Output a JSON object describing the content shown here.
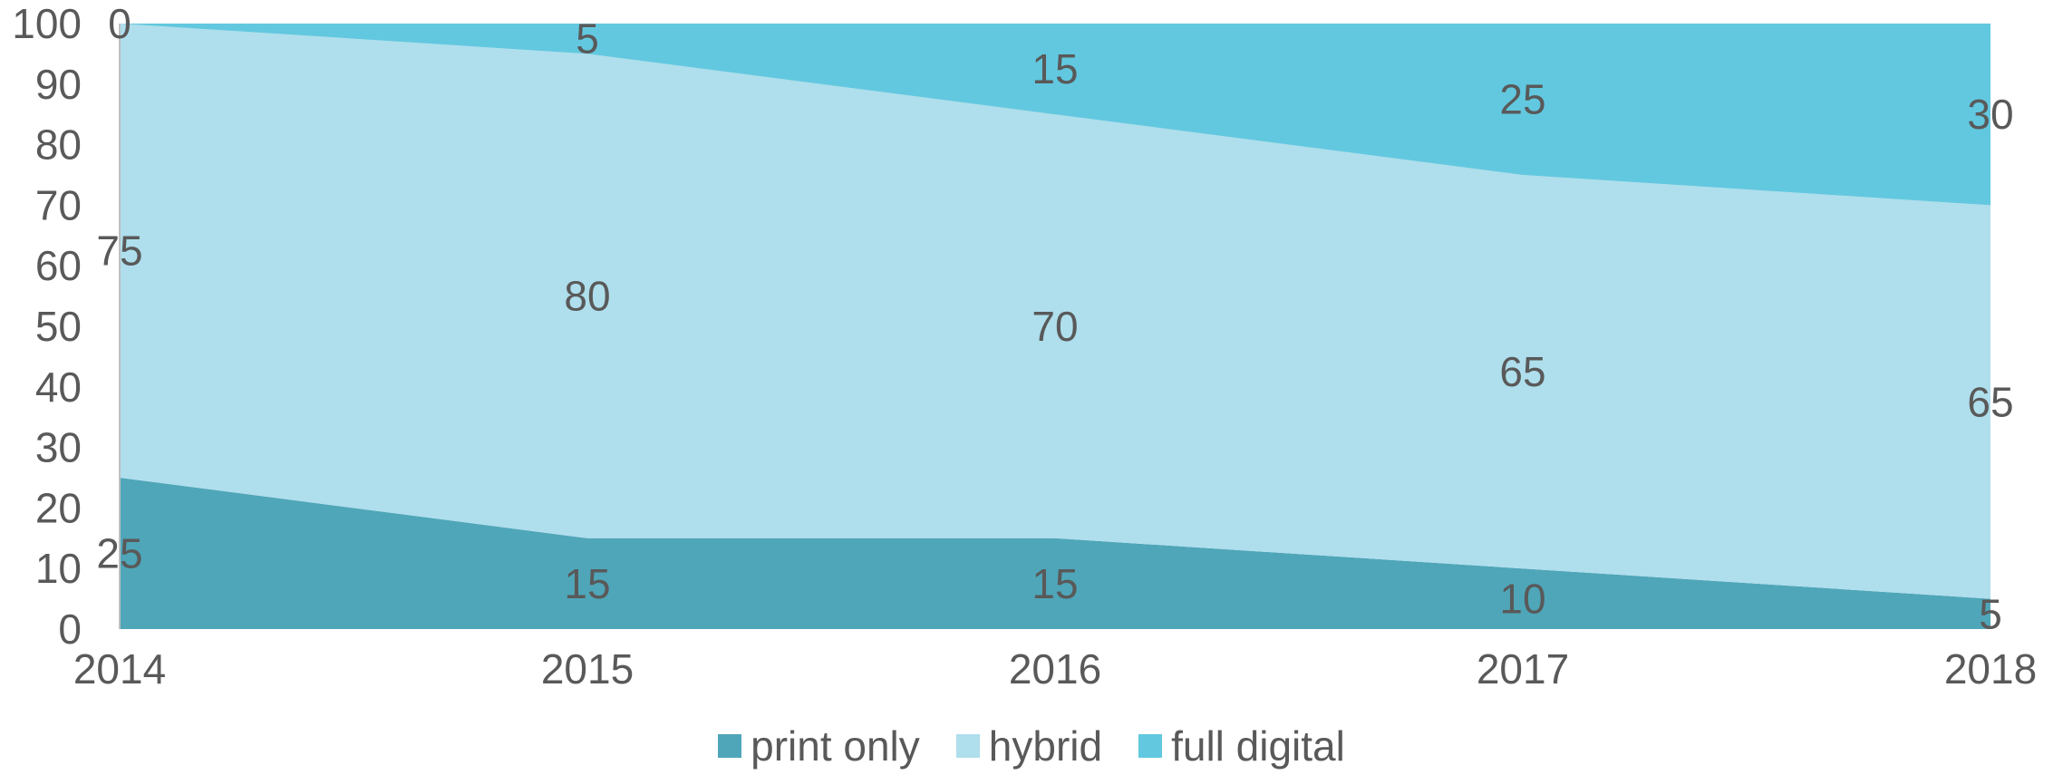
{
  "chart_data": {
    "type": "area",
    "stacked": true,
    "categories": [
      "2014",
      "2015",
      "2016",
      "2017",
      "2018"
    ],
    "series": [
      {
        "name": "print only",
        "values": [
          25,
          15,
          15,
          10,
          5
        ],
        "color": "#4fa6b9"
      },
      {
        "name": "hybrid",
        "values": [
          75,
          80,
          70,
          65,
          65
        ],
        "color": "#afdeec"
      },
      {
        "name": "full digital",
        "values": [
          0,
          5,
          15,
          25,
          30
        ],
        "color": "#62c8df"
      }
    ],
    "ylim": [
      0,
      100
    ],
    "yticks": [
      "0",
      "10",
      "20",
      "30",
      "40",
      "50",
      "60",
      "70",
      "80",
      "90",
      "100"
    ],
    "data_labels": true,
    "grid": false,
    "legend_position": "bottom",
    "title": "",
    "xlabel": "",
    "ylabel": ""
  }
}
